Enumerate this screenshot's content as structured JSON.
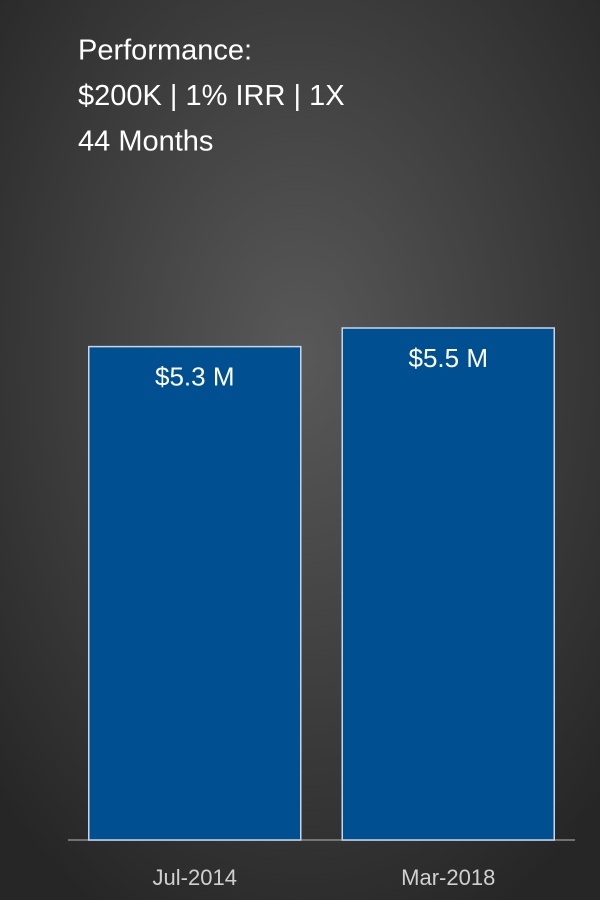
{
  "chart_data": {
    "type": "bar",
    "title_lines": [
      "Performance:",
      "$200K | 1% IRR | 1X",
      "44 Months"
    ],
    "categories": [
      "Jul-2014",
      "Mar-2018"
    ],
    "values": [
      5.3,
      5.5
    ],
    "value_labels": [
      "$5.3 M",
      "$5.5 M"
    ],
    "color": "#004f90"
  }
}
